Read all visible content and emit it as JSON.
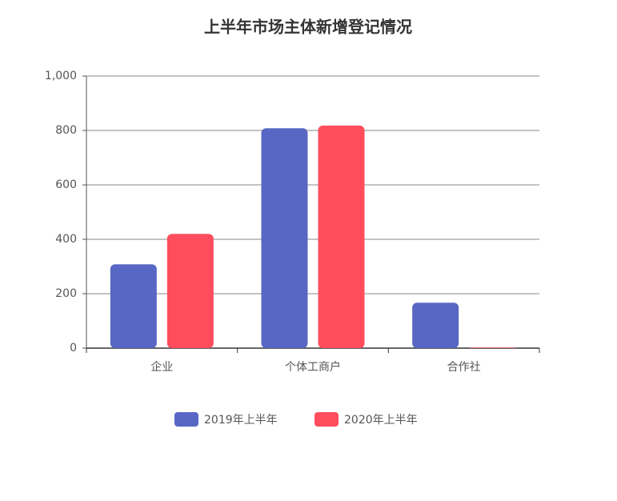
{
  "chart_data": {
    "type": "bar",
    "title": "上半年市场主体新增登记情况",
    "categories": [
      "企业",
      "个体工商户",
      "合作社"
    ],
    "series": [
      {
        "name": "2019年上半年",
        "color": "#5867c4",
        "values": [
          308,
          808,
          167
        ]
      },
      {
        "name": "2020年上半年",
        "color": "#ff4d5e",
        "values": [
          420,
          818,
          2
        ]
      }
    ],
    "ylim": [
      0,
      1000
    ],
    "yticks": [
      0,
      200,
      400,
      600,
      800,
      {
        "value": 1000,
        "label": "1,000"
      }
    ],
    "grid": true
  }
}
